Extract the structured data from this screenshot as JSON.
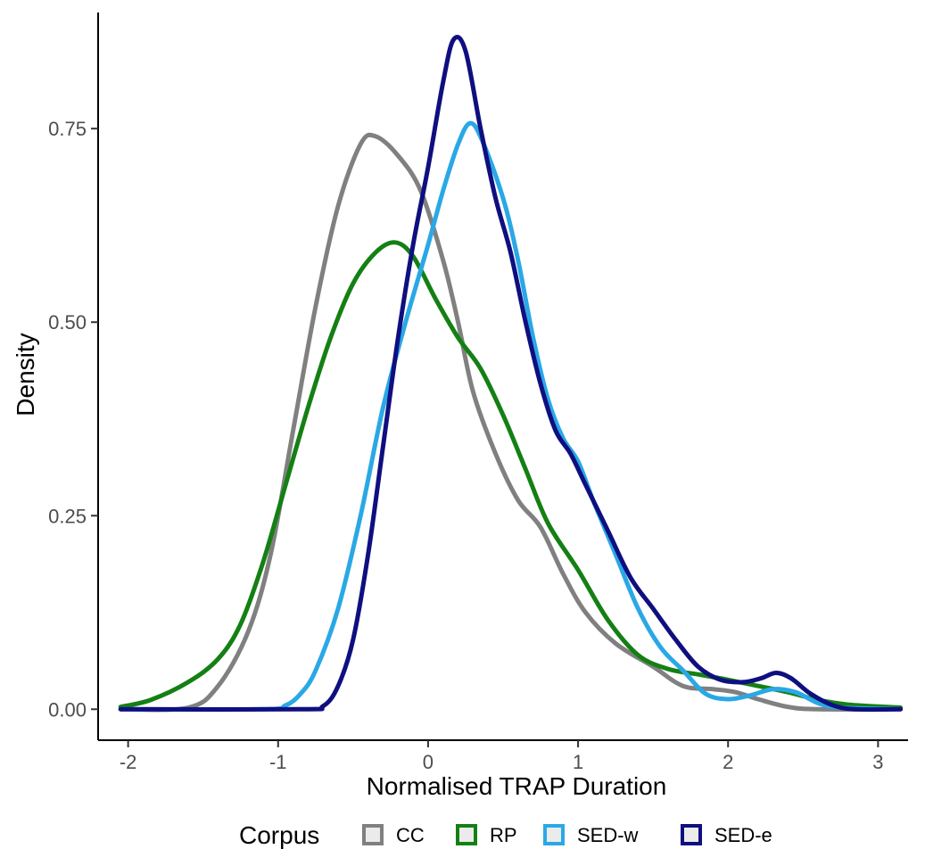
{
  "chart_data": {
    "type": "line",
    "title": "",
    "xlabel": "Normalised TRAP Duration",
    "ylabel": "Density",
    "xlim": [
      -2.2,
      3.2
    ],
    "ylim": [
      -0.04,
      0.9
    ],
    "x_ticks": [
      -2,
      -1,
      0,
      1,
      2,
      3
    ],
    "x_tick_labels": [
      "-2",
      "-1",
      "0",
      "1",
      "2",
      "3"
    ],
    "y_ticks": [
      0,
      0.25,
      0.5,
      0.75
    ],
    "y_tick_labels": [
      "0.00",
      "0.25",
      "0.50",
      "0.75"
    ],
    "grid": false,
    "legend": {
      "title": "Corpus",
      "position": "bottom"
    },
    "series": [
      {
        "name": "CC",
        "color": "#808080",
        "points": [
          [
            -2.05,
            0.0
          ],
          [
            -1.6,
            0.002
          ],
          [
            -1.4,
            0.03
          ],
          [
            -1.2,
            0.1
          ],
          [
            -1.05,
            0.2
          ],
          [
            -0.9,
            0.36
          ],
          [
            -0.75,
            0.52
          ],
          [
            -0.6,
            0.65
          ],
          [
            -0.45,
            0.73
          ],
          [
            -0.35,
            0.74
          ],
          [
            -0.2,
            0.715
          ],
          [
            -0.05,
            0.67
          ],
          [
            0.1,
            0.58
          ],
          [
            0.2,
            0.5
          ],
          [
            0.3,
            0.41
          ],
          [
            0.45,
            0.33
          ],
          [
            0.6,
            0.27
          ],
          [
            0.75,
            0.235
          ],
          [
            0.9,
            0.175
          ],
          [
            1.05,
            0.125
          ],
          [
            1.25,
            0.085
          ],
          [
            1.5,
            0.055
          ],
          [
            1.7,
            0.03
          ],
          [
            1.9,
            0.026
          ],
          [
            2.05,
            0.022
          ],
          [
            2.2,
            0.013
          ],
          [
            2.4,
            0.003
          ],
          [
            2.6,
            0.0
          ],
          [
            3.15,
            0.0
          ]
        ]
      },
      {
        "name": "RP",
        "color": "#148014",
        "points": [
          [
            -2.05,
            0.003
          ],
          [
            -1.85,
            0.012
          ],
          [
            -1.6,
            0.035
          ],
          [
            -1.4,
            0.065
          ],
          [
            -1.25,
            0.11
          ],
          [
            -1.1,
            0.19
          ],
          [
            -0.95,
            0.29
          ],
          [
            -0.8,
            0.39
          ],
          [
            -0.65,
            0.48
          ],
          [
            -0.5,
            0.55
          ],
          [
            -0.35,
            0.59
          ],
          [
            -0.22,
            0.603
          ],
          [
            -0.1,
            0.585
          ],
          [
            0.05,
            0.53
          ],
          [
            0.2,
            0.48
          ],
          [
            0.35,
            0.44
          ],
          [
            0.5,
            0.38
          ],
          [
            0.65,
            0.31
          ],
          [
            0.8,
            0.24
          ],
          [
            1.0,
            0.18
          ],
          [
            1.2,
            0.115
          ],
          [
            1.4,
            0.07
          ],
          [
            1.6,
            0.052
          ],
          [
            1.8,
            0.045
          ],
          [
            2.0,
            0.038
          ],
          [
            2.2,
            0.03
          ],
          [
            2.4,
            0.022
          ],
          [
            2.6,
            0.012
          ],
          [
            2.8,
            0.006
          ],
          [
            3.15,
            0.002
          ]
        ]
      },
      {
        "name": "SED-w",
        "color": "#2aa8e6",
        "points": [
          [
            -2.05,
            0.0
          ],
          [
            -1.1,
            0.0
          ],
          [
            -0.95,
            0.005
          ],
          [
            -0.85,
            0.02
          ],
          [
            -0.75,
            0.05
          ],
          [
            -0.6,
            0.13
          ],
          [
            -0.45,
            0.25
          ],
          [
            -0.3,
            0.39
          ],
          [
            -0.15,
            0.5
          ],
          [
            0.0,
            0.6
          ],
          [
            0.1,
            0.67
          ],
          [
            0.2,
            0.73
          ],
          [
            0.28,
            0.757
          ],
          [
            0.36,
            0.735
          ],
          [
            0.5,
            0.66
          ],
          [
            0.6,
            0.58
          ],
          [
            0.7,
            0.48
          ],
          [
            0.8,
            0.4
          ],
          [
            0.9,
            0.35
          ],
          [
            1.0,
            0.32
          ],
          [
            1.1,
            0.27
          ],
          [
            1.25,
            0.2
          ],
          [
            1.4,
            0.13
          ],
          [
            1.55,
            0.08
          ],
          [
            1.7,
            0.05
          ],
          [
            1.85,
            0.02
          ],
          [
            2.0,
            0.013
          ],
          [
            2.15,
            0.018
          ],
          [
            2.3,
            0.026
          ],
          [
            2.45,
            0.022
          ],
          [
            2.6,
            0.008
          ],
          [
            2.75,
            0.002
          ],
          [
            3.15,
            0.0
          ]
        ]
      },
      {
        "name": "SED-e",
        "color": "#0f0f80",
        "points": [
          [
            -2.05,
            0.0
          ],
          [
            -0.85,
            0.0
          ],
          [
            -0.7,
            0.004
          ],
          [
            -0.6,
            0.03
          ],
          [
            -0.5,
            0.09
          ],
          [
            -0.4,
            0.2
          ],
          [
            -0.3,
            0.34
          ],
          [
            -0.2,
            0.48
          ],
          [
            -0.1,
            0.6
          ],
          [
            0.0,
            0.7
          ],
          [
            0.1,
            0.81
          ],
          [
            0.17,
            0.865
          ],
          [
            0.25,
            0.85
          ],
          [
            0.35,
            0.75
          ],
          [
            0.45,
            0.66
          ],
          [
            0.55,
            0.59
          ],
          [
            0.65,
            0.5
          ],
          [
            0.75,
            0.42
          ],
          [
            0.85,
            0.36
          ],
          [
            0.95,
            0.33
          ],
          [
            1.05,
            0.29
          ],
          [
            1.2,
            0.23
          ],
          [
            1.35,
            0.17
          ],
          [
            1.5,
            0.13
          ],
          [
            1.65,
            0.09
          ],
          [
            1.8,
            0.055
          ],
          [
            1.95,
            0.038
          ],
          [
            2.1,
            0.035
          ],
          [
            2.22,
            0.04
          ],
          [
            2.32,
            0.047
          ],
          [
            2.42,
            0.04
          ],
          [
            2.55,
            0.02
          ],
          [
            2.7,
            0.005
          ],
          [
            2.85,
            0.0
          ],
          [
            3.15,
            0.0
          ]
        ]
      }
    ]
  }
}
